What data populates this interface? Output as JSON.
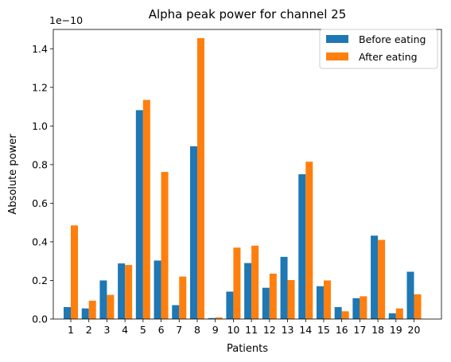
{
  "chart_data": {
    "type": "bar",
    "title": "Alpha peak power for channel 25",
    "xlabel": "Patients",
    "ylabel": "Absolute power",
    "y_scale_label": "1e−10",
    "ylim": [
      0,
      1.5
    ],
    "yticks": [
      0.0,
      0.2,
      0.4,
      0.6,
      0.8,
      1.0,
      1.2,
      1.4
    ],
    "ytick_labels": [
      "0.0",
      "0.2",
      "0.4",
      "0.6",
      "0.8",
      "1.0",
      "1.2",
      "1.4"
    ],
    "categories": [
      "1",
      "2",
      "3",
      "4",
      "5",
      "6",
      "7",
      "8",
      "9",
      "10",
      "11",
      "12",
      "13",
      "14",
      "15",
      "16",
      "17",
      "18",
      "19",
      "20"
    ],
    "legend_position": "top-right",
    "grid": false,
    "series": [
      {
        "name": "Before eating",
        "color": "#1f77b4",
        "values": [
          0.062,
          0.055,
          0.2,
          0.288,
          1.082,
          0.303,
          0.072,
          0.895,
          0.005,
          0.142,
          0.29,
          0.162,
          0.322,
          0.75,
          0.17,
          0.062,
          0.108,
          0.432,
          0.03,
          0.245
        ]
      },
      {
        "name": "After eating",
        "color": "#ff7f0e",
        "values": [
          0.485,
          0.095,
          0.125,
          0.28,
          1.135,
          0.762,
          0.22,
          1.455,
          0.008,
          0.37,
          0.38,
          0.235,
          0.202,
          0.815,
          0.2,
          0.04,
          0.118,
          0.41,
          0.055,
          0.128
        ]
      }
    ]
  }
}
